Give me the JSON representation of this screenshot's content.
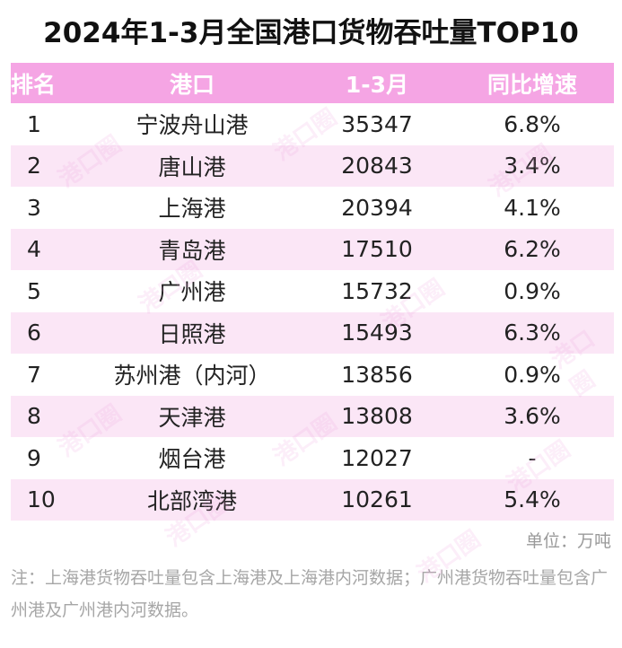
{
  "title": "2024年1-3月全国港口货物吞吐量TOP10",
  "header": {
    "rank": "排名",
    "port": "港口",
    "period": "1-3月",
    "growth": "同比增速"
  },
  "unit": "单位：万吨",
  "note": "注：上海港货物吞吐量包含上海港及上海港内河数据；广州港货物吞吐量包含广州港及广州港内河数据。",
  "watermark": "港口圈",
  "colors": {
    "header_bg": "#f5a5e4",
    "stripe_bg": "#fbe6f6",
    "growth_text": "#ee1d1d"
  },
  "chart_data": {
    "type": "table",
    "title": "2024年1-3月全国港口货物吞吐量TOP10",
    "columns": [
      "排名",
      "港口",
      "1-3月",
      "同比增速"
    ],
    "rows": [
      {
        "rank": "1",
        "port": "宁波舟山港",
        "value": "35347",
        "growth": "6.8%"
      },
      {
        "rank": "2",
        "port": "唐山港",
        "value": "20843",
        "growth": "3.4%"
      },
      {
        "rank": "3",
        "port": "上海港",
        "value": "20394",
        "growth": "4.1%"
      },
      {
        "rank": "4",
        "port": "青岛港",
        "value": "17510",
        "growth": "6.2%"
      },
      {
        "rank": "5",
        "port": "广州港",
        "value": "15732",
        "growth": "0.9%"
      },
      {
        "rank": "6",
        "port": "日照港",
        "value": "15493",
        "growth": "6.3%"
      },
      {
        "rank": "7",
        "port": "苏州港（内河）",
        "value": "13856",
        "growth": "0.9%"
      },
      {
        "rank": "8",
        "port": "天津港",
        "value": "13808",
        "growth": "3.6%"
      },
      {
        "rank": "9",
        "port": "烟台港",
        "value": "12027",
        "growth": "-"
      },
      {
        "rank": "10",
        "port": "北部湾港",
        "value": "10261",
        "growth": "5.4%"
      }
    ]
  }
}
